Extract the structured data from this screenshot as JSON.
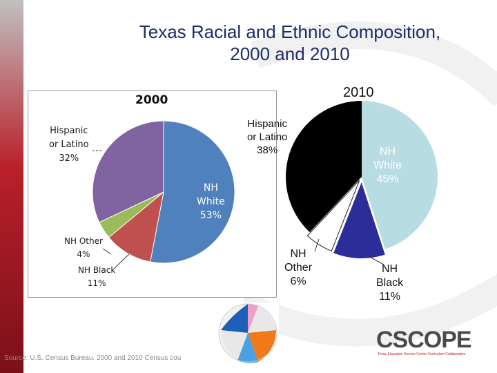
{
  "title_line1": "Texas Racial and Ethnic Composition,",
  "title_line2": "2000 and 2010",
  "source": "Source: U.S. Census Bureau. 2000 and 2010 Census cou",
  "logo_text": "CSCOPE",
  "logo_sub": "Texas Education Service Center Curriculum Collaborative",
  "chart_data": [
    {
      "type": "pie",
      "title": "2000",
      "slices": [
        {
          "label": "NH White",
          "value": 53,
          "value_label": "53%",
          "color": "#4f81bd"
        },
        {
          "label": "NH Black",
          "value": 11,
          "value_label": "11%",
          "color": "#c0504d"
        },
        {
          "label": "NH Other",
          "value": 4,
          "value_label": "4%",
          "color": "#9bbb59"
        },
        {
          "label": "Hispanic or Latino",
          "value": 32,
          "value_label": "32%",
          "color": "#8064a2"
        }
      ],
      "labels": {
        "white": [
          "NH",
          "White",
          "53%"
        ],
        "black": [
          "NH Black",
          "11%"
        ],
        "other": [
          "NH Other",
          "4%"
        ],
        "hispanic": [
          "Hispanic",
          "or Latino",
          "32%"
        ]
      }
    },
    {
      "type": "pie",
      "title": "2010",
      "slices": [
        {
          "label": "NH White",
          "value": 45,
          "value_label": "45%",
          "color": "#b7dde3"
        },
        {
          "label": "NH Black",
          "value": 11,
          "value_label": "11%",
          "color": "#2d2d9a"
        },
        {
          "label": "NH Other",
          "value": 6,
          "value_label": "6%",
          "color": "#ffffff"
        },
        {
          "label": "Hispanic or Latino",
          "value": 38,
          "value_label": "38%",
          "color": "#000000"
        }
      ],
      "labels": {
        "white": [
          "NH",
          "White",
          "45%"
        ],
        "black": [
          "NH",
          "Black",
          "11%"
        ],
        "other": [
          "NH",
          "Other",
          "6%"
        ],
        "hispanic": [
          "Hispanic",
          "or Latino",
          "38%"
        ]
      }
    }
  ]
}
